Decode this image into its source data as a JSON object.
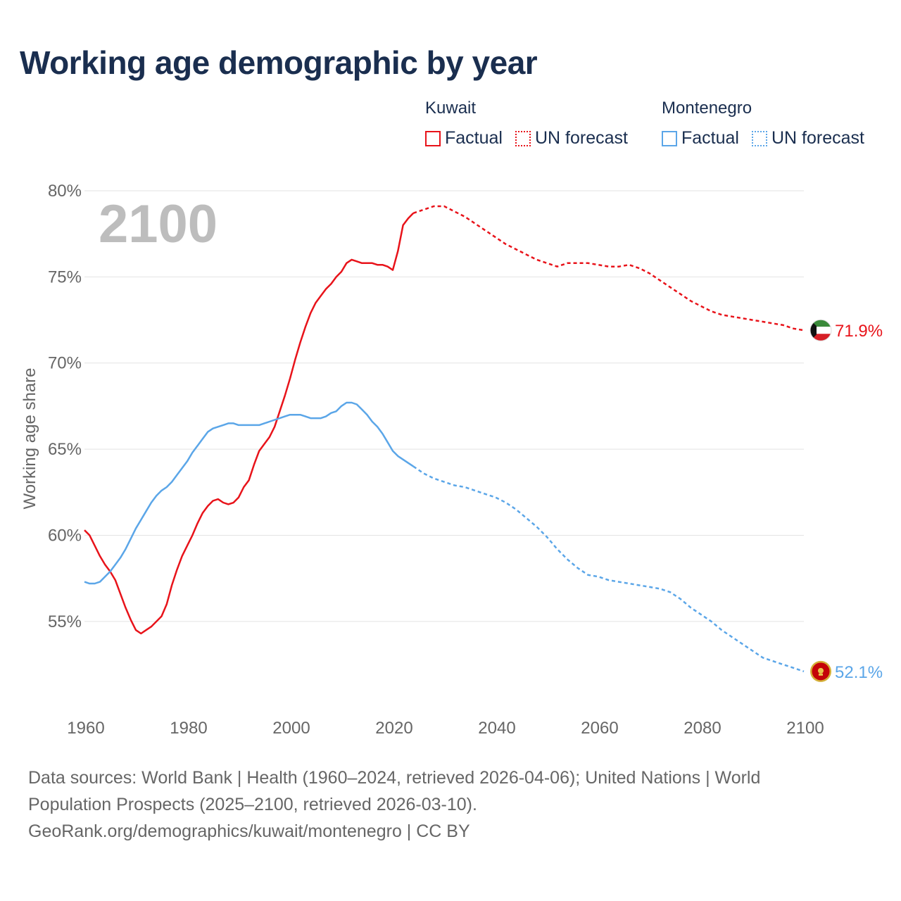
{
  "title": "Working age demographic by year",
  "legend": {
    "groups": [
      {
        "name": "Kuwait",
        "factual": "Factual",
        "forecast": "UN forecast",
        "color": "#e8131a"
      },
      {
        "name": "Montenegro",
        "factual": "Factual",
        "forecast": "UN forecast",
        "color": "#5ba6e8"
      }
    ]
  },
  "footer": {
    "line1": "Data sources: World Bank | Health (1960–2024, retrieved 2026-04-06); United Nations | World",
    "line2": "Population Prospects (2025–2100, retrieved 2026-03-10).",
    "line3": "GeoRank.org/demographics/kuwait/montenegro | CC BY"
  },
  "chart_data": {
    "type": "line",
    "title": "Working age demographic by year",
    "year_display": "2100",
    "ylabel": "Working age share",
    "xlabel": "",
    "xlim": [
      1960,
      2100
    ],
    "ylim": [
      50.5,
      80
    ],
    "x_ticks": [
      1960,
      1980,
      2000,
      2020,
      2040,
      2060,
      2080,
      2100
    ],
    "x_tick_labels": [
      "1960",
      "1980",
      "2000",
      "2020",
      "2040",
      "2060",
      "2080",
      "2100"
    ],
    "y_ticks": [
      55,
      60,
      65,
      70,
      75,
      80
    ],
    "y_tick_labels": [
      "55%",
      "60%",
      "65%",
      "70%",
      "75%",
      "80%"
    ],
    "forecast_start": 2024,
    "series": [
      {
        "name": "Kuwait",
        "color": "#e8131a",
        "end_label": "71.9%",
        "end_icon": "kuwait-flag-icon",
        "points": [
          [
            1960,
            60.3
          ],
          [
            1961,
            60.0
          ],
          [
            1962,
            59.4
          ],
          [
            1963,
            58.8
          ],
          [
            1964,
            58.3
          ],
          [
            1965,
            57.9
          ],
          [
            1966,
            57.4
          ],
          [
            1967,
            56.6
          ],
          [
            1968,
            55.8
          ],
          [
            1969,
            55.1
          ],
          [
            1970,
            54.5
          ],
          [
            1971,
            54.3
          ],
          [
            1972,
            54.5
          ],
          [
            1973,
            54.7
          ],
          [
            1974,
            55.0
          ],
          [
            1975,
            55.3
          ],
          [
            1976,
            56.0
          ],
          [
            1977,
            57.1
          ],
          [
            1978,
            58.0
          ],
          [
            1979,
            58.8
          ],
          [
            1980,
            59.4
          ],
          [
            1981,
            60.0
          ],
          [
            1982,
            60.7
          ],
          [
            1983,
            61.3
          ],
          [
            1984,
            61.7
          ],
          [
            1985,
            62.0
          ],
          [
            1986,
            62.1
          ],
          [
            1987,
            61.9
          ],
          [
            1988,
            61.8
          ],
          [
            1989,
            61.9
          ],
          [
            1990,
            62.2
          ],
          [
            1991,
            62.8
          ],
          [
            1992,
            63.2
          ],
          [
            1993,
            64.1
          ],
          [
            1994,
            64.9
          ],
          [
            1995,
            65.3
          ],
          [
            1996,
            65.7
          ],
          [
            1997,
            66.3
          ],
          [
            1998,
            67.2
          ],
          [
            1999,
            68.1
          ],
          [
            2000,
            69.1
          ],
          [
            2001,
            70.2
          ],
          [
            2002,
            71.2
          ],
          [
            2003,
            72.1
          ],
          [
            2004,
            72.9
          ],
          [
            2005,
            73.5
          ],
          [
            2006,
            73.9
          ],
          [
            2007,
            74.3
          ],
          [
            2008,
            74.6
          ],
          [
            2009,
            75.0
          ],
          [
            2010,
            75.3
          ],
          [
            2011,
            75.8
          ],
          [
            2012,
            76.0
          ],
          [
            2013,
            75.9
          ],
          [
            2014,
            75.8
          ],
          [
            2015,
            75.8
          ],
          [
            2016,
            75.8
          ],
          [
            2017,
            75.7
          ],
          [
            2018,
            75.7
          ],
          [
            2019,
            75.6
          ],
          [
            2020,
            75.4
          ],
          [
            2021,
            76.5
          ],
          [
            2022,
            78.0
          ],
          [
            2023,
            78.4
          ],
          [
            2024,
            78.7
          ]
        ],
        "forecast_points": [
          [
            2024,
            78.7
          ],
          [
            2026,
            78.9
          ],
          [
            2028,
            79.1
          ],
          [
            2030,
            79.1
          ],
          [
            2032,
            78.8
          ],
          [
            2034,
            78.5
          ],
          [
            2036,
            78.1
          ],
          [
            2038,
            77.7
          ],
          [
            2040,
            77.3
          ],
          [
            2042,
            76.9
          ],
          [
            2044,
            76.6
          ],
          [
            2046,
            76.3
          ],
          [
            2048,
            76.0
          ],
          [
            2050,
            75.8
          ],
          [
            2052,
            75.6
          ],
          [
            2054,
            75.8
          ],
          [
            2056,
            75.8
          ],
          [
            2058,
            75.8
          ],
          [
            2060,
            75.7
          ],
          [
            2062,
            75.6
          ],
          [
            2064,
            75.6
          ],
          [
            2066,
            75.7
          ],
          [
            2068,
            75.5
          ],
          [
            2070,
            75.2
          ],
          [
            2072,
            74.8
          ],
          [
            2074,
            74.4
          ],
          [
            2076,
            74.0
          ],
          [
            2078,
            73.6
          ],
          [
            2080,
            73.3
          ],
          [
            2082,
            73.0
          ],
          [
            2084,
            72.8
          ],
          [
            2086,
            72.7
          ],
          [
            2088,
            72.6
          ],
          [
            2090,
            72.5
          ],
          [
            2092,
            72.4
          ],
          [
            2094,
            72.3
          ],
          [
            2096,
            72.2
          ],
          [
            2098,
            72.0
          ],
          [
            2100,
            71.9
          ]
        ]
      },
      {
        "name": "Montenegro",
        "color": "#5ba6e8",
        "end_label": "52.1%",
        "end_icon": "montenegro-flag-icon",
        "points": [
          [
            1960,
            57.3
          ],
          [
            1961,
            57.2
          ],
          [
            1962,
            57.2
          ],
          [
            1963,
            57.3
          ],
          [
            1964,
            57.6
          ],
          [
            1965,
            57.9
          ],
          [
            1966,
            58.3
          ],
          [
            1967,
            58.7
          ],
          [
            1968,
            59.2
          ],
          [
            1969,
            59.8
          ],
          [
            1970,
            60.4
          ],
          [
            1971,
            60.9
          ],
          [
            1972,
            61.4
          ],
          [
            1973,
            61.9
          ],
          [
            1974,
            62.3
          ],
          [
            1975,
            62.6
          ],
          [
            1976,
            62.8
          ],
          [
            1977,
            63.1
          ],
          [
            1978,
            63.5
          ],
          [
            1979,
            63.9
          ],
          [
            1980,
            64.3
          ],
          [
            1981,
            64.8
          ],
          [
            1982,
            65.2
          ],
          [
            1983,
            65.6
          ],
          [
            1984,
            66.0
          ],
          [
            1985,
            66.2
          ],
          [
            1986,
            66.3
          ],
          [
            1987,
            66.4
          ],
          [
            1988,
            66.5
          ],
          [
            1989,
            66.5
          ],
          [
            1990,
            66.4
          ],
          [
            1991,
            66.4
          ],
          [
            1992,
            66.4
          ],
          [
            1993,
            66.4
          ],
          [
            1994,
            66.4
          ],
          [
            1995,
            66.5
          ],
          [
            1996,
            66.6
          ],
          [
            1997,
            66.7
          ],
          [
            1998,
            66.8
          ],
          [
            1999,
            66.9
          ],
          [
            2000,
            67.0
          ],
          [
            2001,
            67.0
          ],
          [
            2002,
            67.0
          ],
          [
            2003,
            66.9
          ],
          [
            2004,
            66.8
          ],
          [
            2005,
            66.8
          ],
          [
            2006,
            66.8
          ],
          [
            2007,
            66.9
          ],
          [
            2008,
            67.1
          ],
          [
            2009,
            67.2
          ],
          [
            2010,
            67.5
          ],
          [
            2011,
            67.7
          ],
          [
            2012,
            67.7
          ],
          [
            2013,
            67.6
          ],
          [
            2014,
            67.3
          ],
          [
            2015,
            67.0
          ],
          [
            2016,
            66.6
          ],
          [
            2017,
            66.3
          ],
          [
            2018,
            65.9
          ],
          [
            2019,
            65.4
          ],
          [
            2020,
            64.9
          ],
          [
            2021,
            64.6
          ],
          [
            2022,
            64.4
          ],
          [
            2023,
            64.2
          ],
          [
            2024,
            64.0
          ]
        ],
        "forecast_points": [
          [
            2024,
            64.0
          ],
          [
            2026,
            63.6
          ],
          [
            2028,
            63.3
          ],
          [
            2030,
            63.1
          ],
          [
            2032,
            62.9
          ],
          [
            2034,
            62.8
          ],
          [
            2036,
            62.6
          ],
          [
            2038,
            62.4
          ],
          [
            2040,
            62.2
          ],
          [
            2042,
            61.9
          ],
          [
            2044,
            61.5
          ],
          [
            2046,
            61.0
          ],
          [
            2048,
            60.5
          ],
          [
            2050,
            59.9
          ],
          [
            2052,
            59.2
          ],
          [
            2054,
            58.6
          ],
          [
            2056,
            58.1
          ],
          [
            2058,
            57.7
          ],
          [
            2060,
            57.6
          ],
          [
            2062,
            57.4
          ],
          [
            2064,
            57.3
          ],
          [
            2066,
            57.2
          ],
          [
            2068,
            57.1
          ],
          [
            2070,
            57.0
          ],
          [
            2072,
            56.9
          ],
          [
            2074,
            56.7
          ],
          [
            2076,
            56.3
          ],
          [
            2078,
            55.8
          ],
          [
            2080,
            55.4
          ],
          [
            2082,
            55.0
          ],
          [
            2084,
            54.5
          ],
          [
            2086,
            54.1
          ],
          [
            2088,
            53.7
          ],
          [
            2090,
            53.3
          ],
          [
            2092,
            52.9
          ],
          [
            2094,
            52.7
          ],
          [
            2096,
            52.5
          ],
          [
            2098,
            52.3
          ],
          [
            2100,
            52.1
          ]
        ]
      }
    ]
  }
}
